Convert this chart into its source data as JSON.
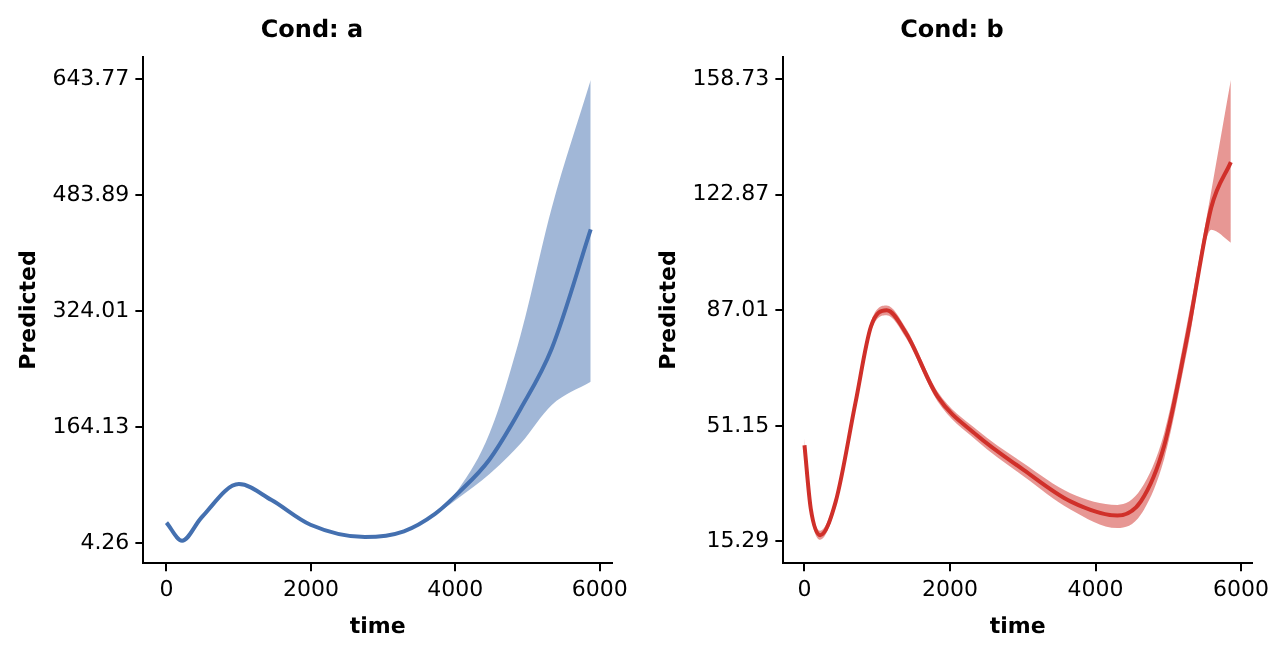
{
  "chart_data": [
    {
      "type": "line",
      "title": "Cond: a",
      "xlabel": "time",
      "ylabel": "Predicted",
      "x": [
        0,
        216,
        485,
        1003,
        1455,
        1994,
        2749,
        3288,
        3719,
        4043,
        4474,
        4905,
        5336,
        5875
      ],
      "xlim": [
        -320,
        6170
      ],
      "xticks": [
        0,
        2000,
        4000,
        6000
      ],
      "ylim": [
        -23,
        675
      ],
      "yticks": [
        4.26,
        164.13,
        324.01,
        483.89,
        643.77
      ],
      "grid": false,
      "legend": false,
      "series": [
        {
          "color": "#4470b0",
          "values": [
            33,
            8,
            40,
            86,
            64,
            30,
            13,
            21,
            45,
            74,
            120,
            190,
            273,
            437
          ],
          "lower": [
            33,
            8,
            40,
            86,
            64,
            30,
            13,
            21,
            44,
            67,
            100,
            142,
            195,
            227
          ],
          "upper": [
            33,
            8,
            40,
            86,
            64,
            30,
            13,
            21,
            46,
            79,
            156,
            292,
            467,
            643
          ]
        }
      ]
    },
    {
      "type": "line",
      "title": "Cond: b",
      "xlabel": "time",
      "ylabel": "Predicted",
      "x": [
        0,
        86,
        215,
        430,
        699,
        914,
        1129,
        1398,
        1828,
        2365,
        3010,
        3655,
        4300,
        4623,
        4945,
        5268,
        5590,
        5859
      ],
      "xlim": [
        -290,
        6150
      ],
      "xticks": [
        0,
        2000,
        4000,
        6000
      ],
      "ylim": [
        8.5,
        165.7
      ],
      "yticks": [
        15.29,
        51.15,
        87.01,
        122.87,
        158.73
      ],
      "grid": false,
      "legend": false,
      "series": [
        {
          "color": "#d0302a",
          "values": [
            45.1,
            25.5,
            17.2,
            27.7,
            58.1,
            82,
            87,
            79.8,
            60.3,
            48.3,
            37.5,
            27.7,
            23.3,
            27.7,
            45.1,
            79.8,
            118.9,
            133
          ],
          "lower": [
            43,
            23.8,
            15.8,
            26.2,
            56.5,
            80.5,
            85.5,
            78.3,
            58.8,
            46.6,
            35.5,
            25.2,
            19.4,
            23.6,
            41,
            75.5,
            112,
            108
          ],
          "upper": [
            47.2,
            27.2,
            18.6,
            29.2,
            59.7,
            83.5,
            88.5,
            81.3,
            61.8,
            50,
            39.5,
            30.2,
            26.6,
            31.5,
            49,
            84,
            124,
            158.5
          ]
        }
      ]
    }
  ]
}
